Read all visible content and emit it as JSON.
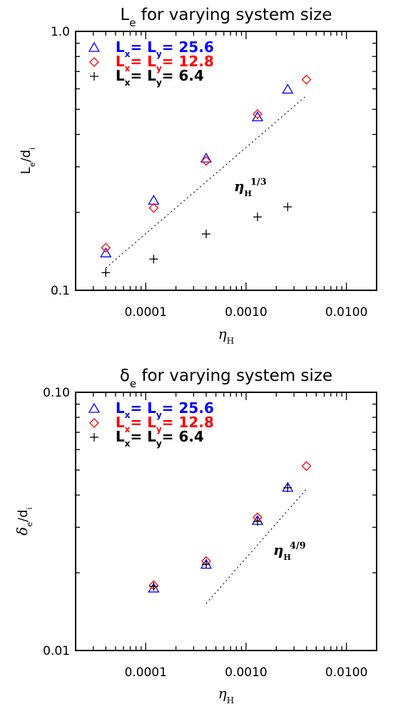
{
  "chart_data": [
    {
      "type": "scatter",
      "title_main": "L",
      "title_sub": "e",
      "title_rest": " for varying system size",
      "xlabel_main": "η",
      "xlabel_sub": "H",
      "ylabel_main": "L",
      "ylabel_sub": "e",
      "ylabel_rest": "/d",
      "ylabel_sub2": "i",
      "x_scale": "log",
      "y_scale": "log",
      "xlim": [
        2e-05,
        0.02
      ],
      "ylim": [
        0.1,
        1.0
      ],
      "x_tick_labels": [
        "0.0001",
        "0.0010",
        "0.0100"
      ],
      "y_tick_labels": [
        "0.1",
        "1.0"
      ],
      "legend_position": "top-left",
      "series": [
        {
          "name": "Lx= Ly= 25.6",
          "marker": "triangle",
          "color": "#0000ff",
          "x": [
            4e-05,
            0.00012,
            0.0004,
            0.0013,
            0.0026
          ],
          "y": [
            0.139,
            0.222,
            0.323,
            0.466,
            0.596
          ]
        },
        {
          "name": "Lx= Ly= 12.8",
          "marker": "diamond",
          "color": "#ff0000",
          "x": [
            4e-05,
            0.00012,
            0.0004,
            0.0013,
            0.004
          ],
          "y": [
            0.146,
            0.208,
            0.316,
            0.479,
            0.651
          ]
        },
        {
          "name": "Lx= Ly= 6.4",
          "marker": "plus",
          "color": "#000000",
          "x": [
            4e-05,
            0.00012,
            0.0004,
            0.0013,
            0.0026
          ],
          "y": [
            0.117,
            0.132,
            0.165,
            0.192,
            0.21
          ]
        }
      ],
      "fit_line": {
        "x": [
          4e-05,
          0.004
        ],
        "y": [
          0.122,
          0.565
        ]
      },
      "annotation": {
        "base": "η",
        "sub": "H",
        "sup": "1/3"
      }
    },
    {
      "type": "scatter",
      "title_main": "δ",
      "title_sub": "e",
      "title_rest": " for varying system size",
      "xlabel_main": "η",
      "xlabel_sub": "H",
      "ylabel_main": "δ",
      "ylabel_sub": "e",
      "ylabel_rest": "/d",
      "ylabel_sub2": "i",
      "x_scale": "log",
      "y_scale": "log",
      "xlim": [
        2e-05,
        0.02
      ],
      "ylim": [
        0.01,
        0.1
      ],
      "x_tick_labels": [
        "0.0001",
        "0.0010",
        "0.0100"
      ],
      "y_tick_labels": [
        "0.01",
        "0.10"
      ],
      "legend_position": "top-left",
      "series": [
        {
          "name": "Lx= Ly= 25.6",
          "marker": "triangle",
          "color": "#0000ff",
          "x": [
            0.00012,
            0.0004,
            0.0013,
            0.0026
          ],
          "y": [
            0.0174,
            0.0215,
            0.0318,
            0.0427
          ]
        },
        {
          "name": "Lx= Ly= 12.8",
          "marker": "diamond",
          "color": "#ff0000",
          "x": [
            0.00012,
            0.0004,
            0.0013,
            0.004
          ],
          "y": [
            0.0179,
            0.0222,
            0.0328,
            0.0518
          ]
        },
        {
          "name": "Lx= Ly= 6.4",
          "marker": "plus",
          "color": "#000000",
          "x": [
            0.00012,
            0.0004,
            0.0013,
            0.0026
          ],
          "y": [
            0.0177,
            0.0216,
            0.0316,
            0.0427
          ]
        }
      ],
      "fit_line": {
        "x": [
          0.0004,
          0.004
        ],
        "y": [
          0.0152,
          0.0422
        ]
      },
      "annotation": {
        "base": "η",
        "sub": "H",
        "sup": "4/9"
      }
    }
  ]
}
